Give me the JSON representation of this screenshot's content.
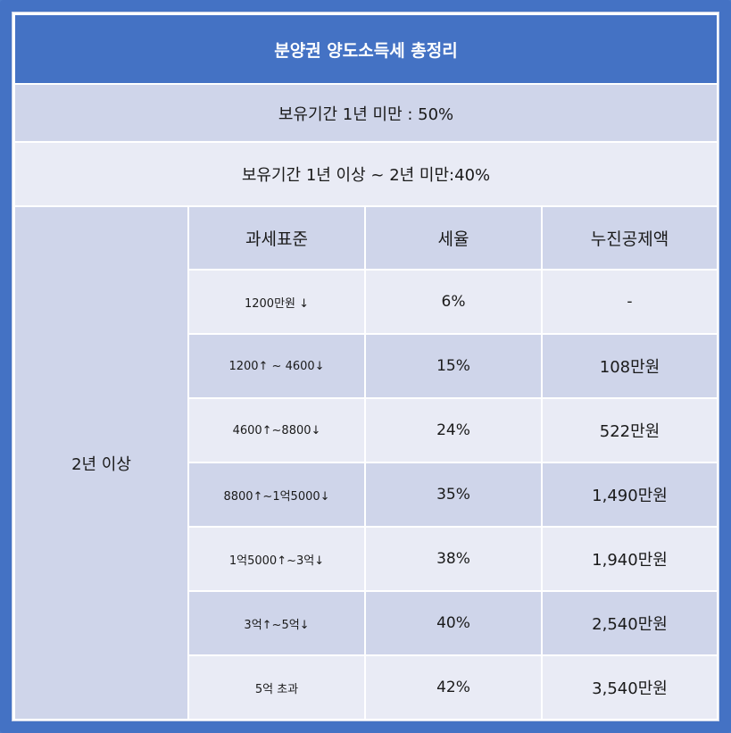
{
  "title": "분양권 양도소득세 총정리",
  "rows": {
    "under_1_year": "보유기간 1년 미만 : 50%",
    "one_to_two_years": "보유기간 1년 이상 ~ 2년 미만:40%",
    "over_2_years": "2년 이상"
  },
  "table": {
    "headers": [
      "과세표준",
      "세율",
      "누진공제액"
    ],
    "rows": [
      {
        "base": "1200만원 ↓",
        "rate": "6%",
        "deduction": "-"
      },
      {
        "base": "1200↑ ~ 4600↓",
        "rate": "15%",
        "deduction": "108만원"
      },
      {
        "base": "4600↑~8800↓",
        "rate": "24%",
        "deduction": "522만원"
      },
      {
        "base": "8800↑~1억5000↓",
        "rate": "35%",
        "deduction": "1,490만원"
      },
      {
        "base": "1억5000↑~3억↓",
        "rate": "38%",
        "deduction": "1,940만원"
      },
      {
        "base": "3억↑~5억↓",
        "rate": "40%",
        "deduction": "2,540만원"
      },
      {
        "base": "5억 초과",
        "rate": "42%",
        "deduction": "3,540만원"
      }
    ]
  },
  "colors": {
    "frame": "#4472c4",
    "dark_row": "#cfd5ea",
    "light_row": "#e9ebf5"
  }
}
